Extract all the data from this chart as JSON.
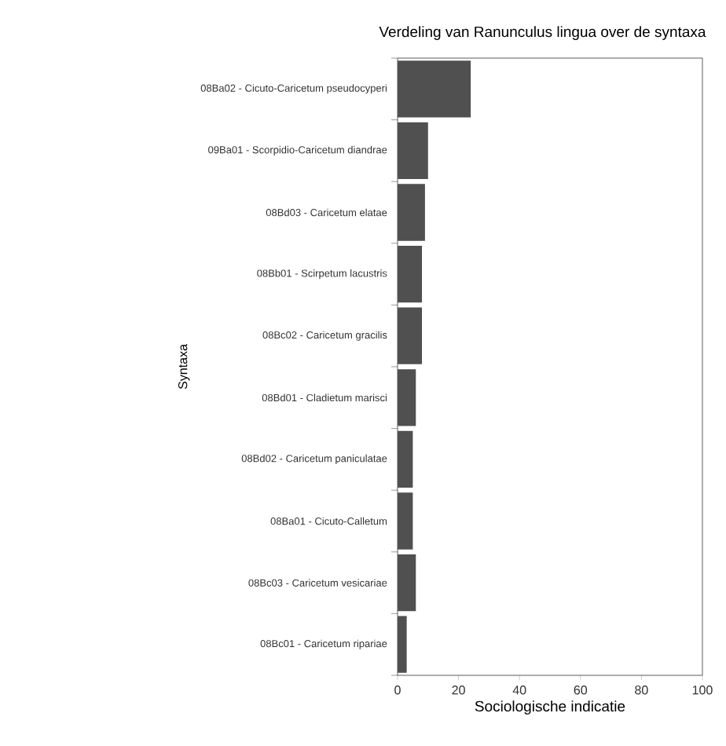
{
  "chart_data": {
    "type": "bar",
    "orientation": "horizontal",
    "title": "Verdeling van Ranunculus lingua over de syntaxa",
    "xlabel": "Sociologische indicatie",
    "ylabel": "Syntaxa",
    "categories": [
      "08Ba02 - Cicuto-Caricetum pseudocyperi",
      "09Ba01 - Scorpidio-Caricetum diandrae",
      "08Bd03 - Caricetum elatae",
      "08Bb01 - Scirpetum lacustris",
      "08Bc02 - Caricetum gracilis",
      "08Bd01 - Cladietum marisci",
      "08Bd02 - Caricetum paniculatae",
      "08Ba01 - Cicuto-Calletum",
      "08Bc03 - Caricetum vesicariae",
      "08Bc01 - Caricetum ripariae"
    ],
    "values": [
      24,
      10,
      9,
      8,
      8,
      6,
      5,
      5,
      6,
      3
    ],
    "color": "#505050",
    "xlim": [
      0,
      100
    ],
    "xticks": [
      0,
      20,
      40,
      60,
      80,
      100
    ],
    "grid": false
  }
}
